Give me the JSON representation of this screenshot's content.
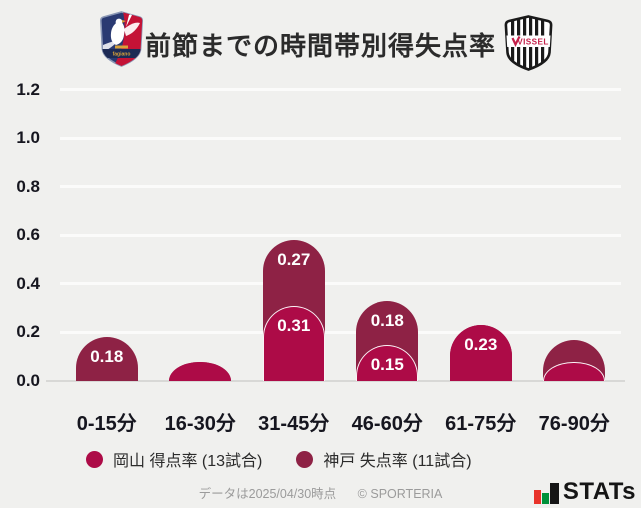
{
  "header": {
    "title": "前節までの時間帯別得失点率",
    "left_crest": "fagiano-okayama-crest",
    "right_crest": "vissel-kobe-crest",
    "vissel_crest_text": "VISSEL"
  },
  "chart_data": {
    "type": "bar",
    "variant": "stacked-rounded-dome",
    "title": "前節までの時間帯別得失点率",
    "categories": [
      "0-15分",
      "16-30分",
      "31-45分",
      "46-60分",
      "61-75分",
      "76-90分"
    ],
    "series": [
      {
        "name": "岡山 得点率 (13試合)",
        "role": "front-bottom",
        "color": "#ad0b47",
        "values": [
          0,
          0.08,
          0.31,
          0.15,
          0.23,
          0.08
        ],
        "labels": [
          "",
          "",
          "0.31",
          "0.15",
          "0.23",
          ""
        ]
      },
      {
        "name": "神戸 失点率 (11試合)",
        "role": "back-top",
        "color": "#8e2245",
        "values": [
          0.18,
          0,
          0.27,
          0.18,
          0,
          0.09
        ],
        "labels": [
          "0.18",
          "",
          "0.27",
          "0.18",
          "",
          ""
        ]
      }
    ],
    "yticks": [
      "0.0",
      "0.2",
      "0.4",
      "0.6",
      "0.8",
      "1.0",
      "1.2"
    ],
    "ylim": [
      0,
      1.26
    ],
    "grid": true,
    "legend_position": "bottom"
  },
  "legend": {
    "items": [
      {
        "label": "岡山 得点率 (13試合)",
        "color": "#ad0b47"
      },
      {
        "label": "神戸 失点率 (11試合)",
        "color": "#8e2245"
      }
    ]
  },
  "footer": {
    "note": "データは2025/04/30時点",
    "copyright": "© SPORTERIA",
    "brand": "STATs"
  },
  "colors": {
    "background": "#f0f0ee",
    "gridline": "#fbfbfa",
    "axis": "#d8d8d6",
    "okayama": "#ad0b47",
    "kobe": "#8e2245",
    "bar_value_text": "#ffffff",
    "stats_red": "#e8332a",
    "stats_green": "#00913a"
  }
}
